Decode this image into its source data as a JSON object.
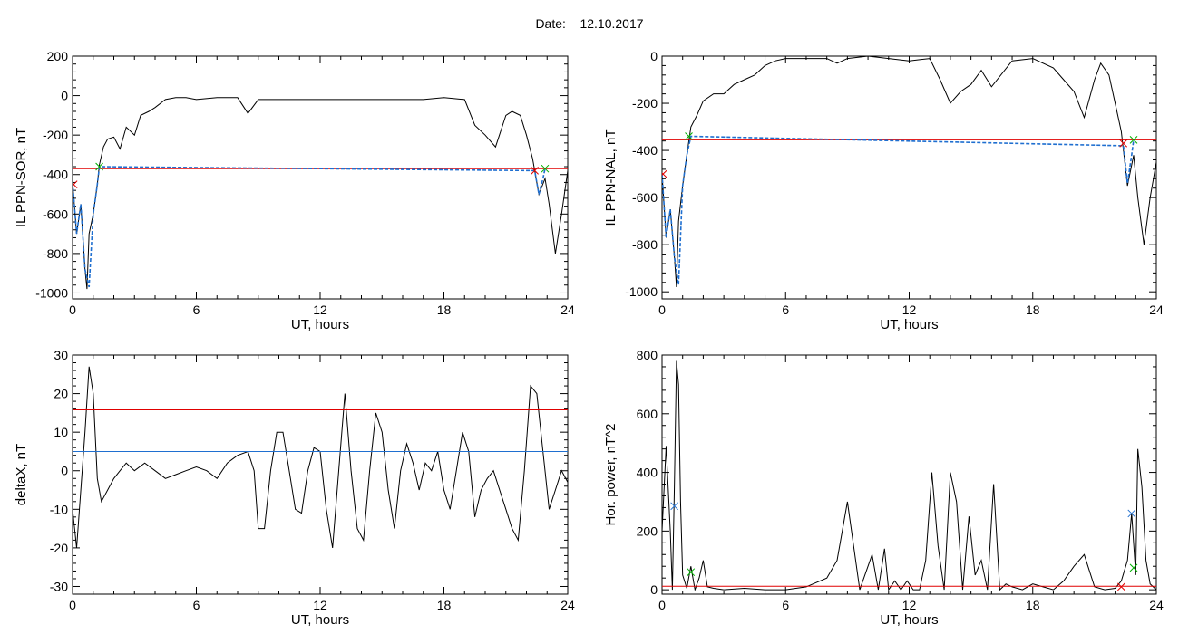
{
  "header": {
    "date_label": "Date:",
    "date_value": "12.10.2017"
  },
  "colors": {
    "black": "#000000",
    "red": "#e00000",
    "blue": "#1f6fd0",
    "green": "#00b000"
  },
  "chart_data": [
    {
      "id": "tl",
      "type": "line",
      "ylabel": "IL PPN-SOR, nT",
      "xlabel": "UT, hours",
      "xlim": [
        0,
        24
      ],
      "ylim": [
        -1030,
        200
      ],
      "xticks": [
        0,
        6,
        12,
        18,
        24
      ],
      "yticks": [
        200,
        0,
        -200,
        -400,
        -600,
        -800,
        -1000
      ],
      "series": [
        {
          "color": "black",
          "x": [
            0,
            0.2,
            0.4,
            0.6,
            0.7,
            0.8,
            1.0,
            1.2,
            1.3,
            1.5,
            1.7,
            2.0,
            2.3,
            2.6,
            3.0,
            3.3,
            3.7,
            4.0,
            4.5,
            5.0,
            5.5,
            6,
            7,
            8,
            8.5,
            9,
            10,
            11,
            12,
            13,
            14,
            15,
            16,
            17,
            18,
            19,
            19.5,
            20,
            20.5,
            21,
            21.3,
            21.7,
            22,
            22.3,
            22.6,
            22.9,
            23.1,
            23.4,
            23.7,
            24
          ],
          "y": [
            -440,
            -700,
            -550,
            -880,
            -980,
            -700,
            -600,
            -450,
            -350,
            -260,
            -220,
            -210,
            -270,
            -160,
            -200,
            -100,
            -80,
            -60,
            -20,
            -10,
            -10,
            -20,
            -10,
            -10,
            -90,
            -20,
            -20,
            -20,
            -20,
            -20,
            -20,
            -20,
            -20,
            -20,
            -10,
            -20,
            -150,
            -200,
            -260,
            -100,
            -80,
            -100,
            -200,
            -320,
            -500,
            -420,
            -550,
            -800,
            -600,
            -380
          ]
        },
        {
          "color": "red",
          "x": [
            0,
            24
          ],
          "y": [
            -370,
            -370
          ]
        },
        {
          "color": "blue",
          "x": [
            0,
            0.2,
            0.4,
            0.6,
            0.8,
            1.0,
            1.2,
            1.3,
            22.4,
            22.6,
            22.8,
            22.9
          ],
          "y": [
            -440,
            -700,
            -550,
            -880,
            -970,
            -600,
            -450,
            -360,
            -380,
            -500,
            -420,
            -370
          ]
        }
      ],
      "markers": [
        {
          "color": "red",
          "x": 0.05,
          "y": -450
        },
        {
          "color": "green",
          "x": 1.3,
          "y": -360
        },
        {
          "color": "red",
          "x": 22.4,
          "y": -380
        },
        {
          "color": "green",
          "x": 22.9,
          "y": -370
        }
      ]
    },
    {
      "id": "tr",
      "type": "line",
      "ylabel": "IL PPN-NAL, nT",
      "xlabel": "UT, hours",
      "xlim": [
        0,
        24
      ],
      "ylim": [
        -1030,
        0
      ],
      "xticks": [
        0,
        6,
        12,
        18,
        24
      ],
      "yticks": [
        0,
        -200,
        -400,
        -600,
        -800,
        -1000
      ],
      "series": [
        {
          "color": "black",
          "x": [
            0,
            0.2,
            0.4,
            0.6,
            0.7,
            0.8,
            1.0,
            1.2,
            1.4,
            1.7,
            2.0,
            2.5,
            3.0,
            3.5,
            4.0,
            4.5,
            5.0,
            5.5,
            6,
            7,
            8,
            8.5,
            9,
            10,
            11,
            12,
            13,
            13.5,
            14,
            14.5,
            15,
            15.5,
            16,
            17,
            18,
            19,
            19.5,
            20,
            20.5,
            21,
            21.3,
            21.7,
            22,
            22.3,
            22.6,
            22.9,
            23.1,
            23.4,
            23.7,
            24
          ],
          "y": [
            -500,
            -770,
            -650,
            -850,
            -980,
            -700,
            -550,
            -420,
            -300,
            -250,
            -190,
            -160,
            -160,
            -120,
            -100,
            -80,
            -40,
            -20,
            -10,
            -10,
            -10,
            -30,
            -10,
            0,
            -10,
            -20,
            -10,
            -100,
            -200,
            -150,
            -120,
            -60,
            -130,
            -20,
            -10,
            -50,
            -100,
            -150,
            -260,
            -100,
            -30,
            -80,
            -200,
            -320,
            -550,
            -420,
            -600,
            -800,
            -600,
            -450
          ]
        },
        {
          "color": "red",
          "x": [
            0,
            24
          ],
          "y": [
            -355,
            -355
          ]
        },
        {
          "color": "blue",
          "x": [
            0,
            0.2,
            0.4,
            0.6,
            0.8,
            1.0,
            1.2,
            1.4,
            22.4,
            22.6,
            22.8,
            22.9
          ],
          "y": [
            -500,
            -770,
            -650,
            -850,
            -970,
            -550,
            -420,
            -340,
            -380,
            -540,
            -420,
            -355
          ]
        }
      ],
      "markers": [
        {
          "color": "red",
          "x": 0.05,
          "y": -500
        },
        {
          "color": "green",
          "x": 1.3,
          "y": -340
        },
        {
          "color": "red",
          "x": 22.4,
          "y": -370
        },
        {
          "color": "green",
          "x": 22.9,
          "y": -355
        }
      ]
    },
    {
      "id": "bl",
      "type": "line",
      "ylabel": "deltaX, nT",
      "xlabel": "UT, hours",
      "xlim": [
        0,
        24
      ],
      "ylim": [
        -32,
        30
      ],
      "xticks": [
        0,
        6,
        12,
        18,
        24
      ],
      "yticks": [
        30,
        20,
        10,
        0,
        -10,
        -20,
        -30
      ],
      "series": [
        {
          "color": "black",
          "x": [
            0,
            0.2,
            0.4,
            0.6,
            0.8,
            1.0,
            1.2,
            1.4,
            1.7,
            2.0,
            2.3,
            2.6,
            3.0,
            3.5,
            4.0,
            4.5,
            5.0,
            5.5,
            6,
            6.5,
            7,
            7.5,
            8,
            8.5,
            8.8,
            9.0,
            9.3,
            9.6,
            9.9,
            10.2,
            10.5,
            10.8,
            11.1,
            11.4,
            11.7,
            12.0,
            12.3,
            12.6,
            12.9,
            13.2,
            13.5,
            13.8,
            14.1,
            14.4,
            14.7,
            15.0,
            15.3,
            15.6,
            15.9,
            16.2,
            16.5,
            16.8,
            17.1,
            17.4,
            17.7,
            18.0,
            18.3,
            18.6,
            18.9,
            19.2,
            19.5,
            19.8,
            20.1,
            20.4,
            20.7,
            21.0,
            21.3,
            21.6,
            21.9,
            22.2,
            22.5,
            22.8,
            23.1,
            23.4,
            23.7,
            24
          ],
          "y": [
            -10,
            -20,
            -5,
            10,
            27,
            20,
            -2,
            -8,
            -5,
            -2,
            0,
            2,
            0,
            2,
            0,
            -2,
            -1,
            0,
            1,
            0,
            -2,
            2,
            4,
            5,
            0,
            -15,
            -15,
            0,
            10,
            10,
            0,
            -10,
            -11,
            0,
            6,
            5,
            -10,
            -20,
            0,
            20,
            0,
            -15,
            -18,
            0,
            15,
            10,
            -5,
            -15,
            0,
            7,
            2,
            -5,
            2,
            0,
            5,
            -5,
            -10,
            0,
            10,
            5,
            -12,
            -5,
            -2,
            0,
            -5,
            -10,
            -15,
            -18,
            0,
            22,
            20,
            5,
            -10,
            -5,
            0,
            -3
          ]
        },
        {
          "color": "red",
          "x": [
            0,
            24
          ],
          "y": [
            15.8,
            15.8
          ]
        },
        {
          "color": "blue",
          "x": [
            0,
            24
          ],
          "y": [
            5,
            5
          ]
        }
      ],
      "markers": []
    },
    {
      "id": "br",
      "type": "line",
      "ylabel": "Hor. power, nT^2",
      "xlabel": "UT, hours",
      "xlim": [
        0,
        24
      ],
      "ylim": [
        -15,
        800
      ],
      "xticks": [
        0,
        6,
        12,
        18,
        24
      ],
      "yticks": [
        800,
        600,
        400,
        200,
        0
      ],
      "series": [
        {
          "color": "black",
          "x": [
            0,
            0.2,
            0.4,
            0.5,
            0.6,
            0.7,
            0.8,
            0.9,
            1.0,
            1.2,
            1.4,
            1.6,
            1.8,
            2.0,
            2.2,
            2.5,
            3,
            4,
            5,
            6,
            7,
            8,
            8.5,
            9,
            9.3,
            9.6,
            9.9,
            10.2,
            10.5,
            10.8,
            11,
            11.3,
            11.6,
            11.9,
            12.2,
            12.5,
            12.8,
            13.1,
            13.4,
            13.7,
            14,
            14.3,
            14.6,
            14.9,
            15.2,
            15.5,
            15.8,
            16.1,
            16.4,
            16.7,
            17,
            17.5,
            18,
            18.5,
            19,
            19.5,
            20,
            20.5,
            21,
            21.5,
            22,
            22.3,
            22.6,
            22.8,
            23.0,
            23.1,
            23.3,
            23.5,
            23.7,
            24
          ],
          "y": [
            200,
            490,
            200,
            0,
            350,
            780,
            700,
            300,
            50,
            5,
            80,
            0,
            40,
            100,
            10,
            5,
            0,
            5,
            0,
            0,
            10,
            40,
            100,
            300,
            150,
            0,
            60,
            120,
            0,
            140,
            0,
            30,
            0,
            30,
            0,
            0,
            100,
            400,
            150,
            0,
            400,
            300,
            0,
            250,
            50,
            100,
            0,
            360,
            0,
            20,
            10,
            0,
            20,
            10,
            0,
            30,
            80,
            120,
            10,
            0,
            5,
            30,
            100,
            260,
            50,
            480,
            350,
            100,
            20,
            0
          ]
        },
        {
          "color": "red",
          "x": [
            0,
            24
          ],
          "y": [
            12,
            12
          ]
        }
      ],
      "markers": [
        {
          "color": "blue",
          "x": 0.6,
          "y": 285
        },
        {
          "color": "green",
          "x": 1.4,
          "y": 60
        },
        {
          "color": "red",
          "x": 22.3,
          "y": 10
        },
        {
          "color": "blue",
          "x": 22.8,
          "y": 260
        },
        {
          "color": "green",
          "x": 22.9,
          "y": 75
        }
      ]
    }
  ]
}
